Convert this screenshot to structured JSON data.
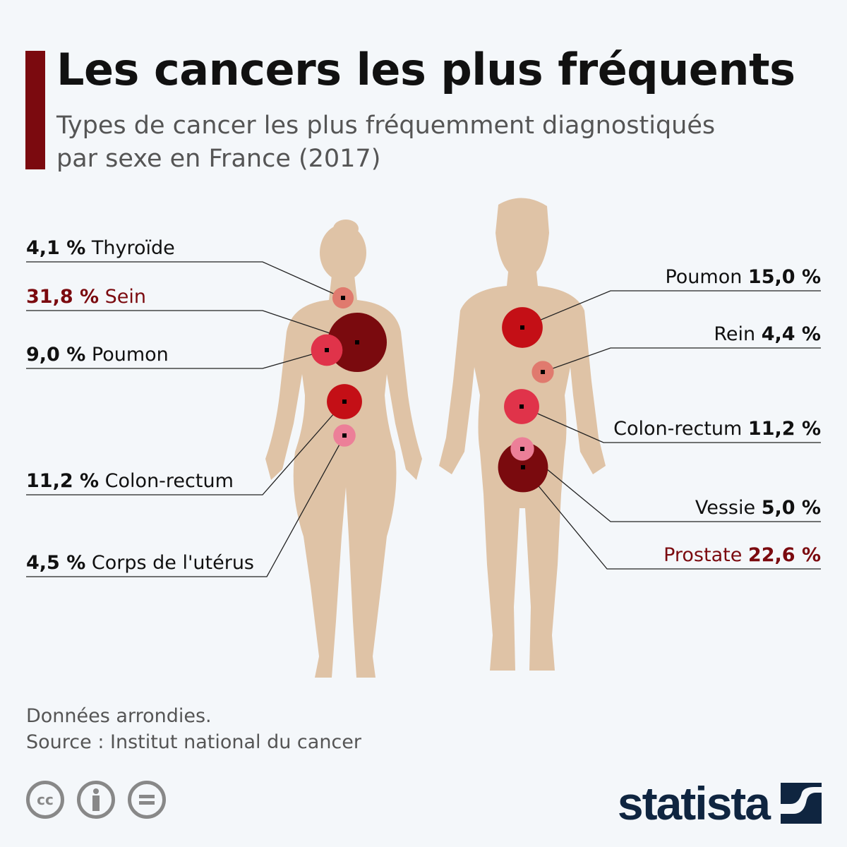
{
  "header": {
    "title": "Les cancers les plus fréquents",
    "subtitle": "Types de cancer les plus fréquemment diagnostiqués par sexe en France (2017)"
  },
  "chart_data": {
    "type": "bubble",
    "title": "Les cancers les plus fréquents",
    "unit": "%",
    "series": [
      {
        "name": "Femmes",
        "points": [
          {
            "label": "Thyroïde",
            "value": 4.1,
            "display": "4,1 %",
            "color": "#e07a6e",
            "highlight": false
          },
          {
            "label": "Sein",
            "value": 31.8,
            "display": "31,8 %",
            "color": "#7a0a0e",
            "highlight": true
          },
          {
            "label": "Poumon",
            "value": 9.0,
            "display": "9,0 %",
            "color": "#e0334a",
            "highlight": false
          },
          {
            "label": "Colon-rectum",
            "value": 11.2,
            "display": "11,2 %",
            "color": "#c40f16",
            "highlight": false
          },
          {
            "label": "Corps de l'utérus",
            "value": 4.5,
            "display": "4,5 %",
            "color": "#ec7f98",
            "highlight": false
          }
        ]
      },
      {
        "name": "Hommes",
        "points": [
          {
            "label": "Poumon",
            "value": 15.0,
            "display": "15,0 %",
            "color": "#c40f16",
            "highlight": false
          },
          {
            "label": "Rein",
            "value": 4.4,
            "display": "4,4 %",
            "color": "#e07a6e",
            "highlight": false
          },
          {
            "label": "Colon-rectum",
            "value": 11.2,
            "display": "11,2 %",
            "color": "#e0334a",
            "highlight": false
          },
          {
            "label": "Vessie",
            "value": 5.0,
            "display": "5,0 %",
            "color": "#ec7f98",
            "highlight": false
          },
          {
            "label": "Prostate",
            "value": 22.6,
            "display": "22,6 %",
            "color": "#7a0a0e",
            "highlight": true
          }
        ]
      }
    ]
  },
  "footer": {
    "note": "Données arrondies.",
    "source": "Source : Institut national du cancer",
    "license_icons": [
      "cc-icon",
      "attribution-icon",
      "no-derivatives-icon"
    ],
    "brand": "statista"
  },
  "colors": {
    "accent": "#7b0a0f",
    "skin": "#dfc3a6",
    "brand": "#0f2540"
  }
}
